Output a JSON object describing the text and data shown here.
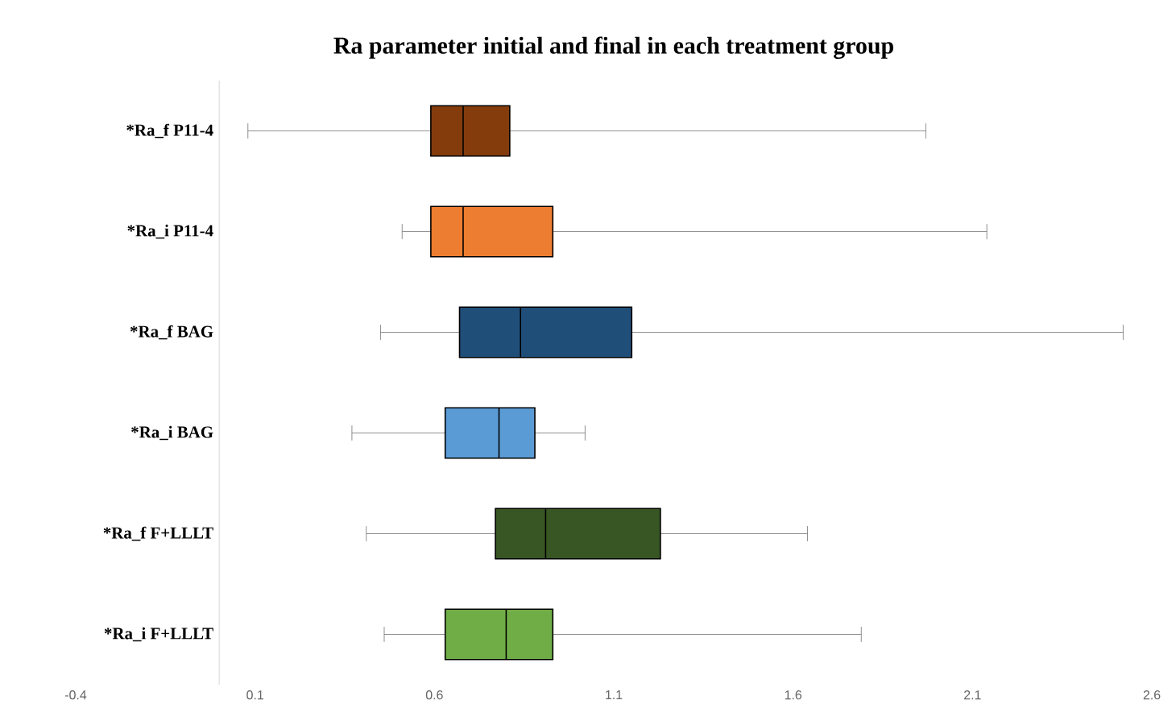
{
  "chart_data": {
    "type": "box",
    "title": "Ra parameter initial and final in each treatment group",
    "orientation": "horizontal",
    "categories": [
      "*Ra_f P11-4",
      "*Ra_i P11-4",
      "*Ra_f BAG",
      "*Ra_i BAG",
      "*Ra_f F+LLLT",
      "*Ra_i F+LLLT"
    ],
    "colors": [
      "#843c0c",
      "#ed7d31",
      "#1f4e79",
      "#5b9bd5",
      "#375623",
      "#70ad47"
    ],
    "boxes": [
      {
        "low": 0.08,
        "q1": 0.59,
        "median": 0.68,
        "q3": 0.81,
        "high": 1.97
      },
      {
        "low": 0.51,
        "q1": 0.59,
        "median": 0.68,
        "q3": 0.93,
        "high": 2.14
      },
      {
        "low": 0.45,
        "q1": 0.67,
        "median": 0.84,
        "q3": 1.15,
        "high": 2.52
      },
      {
        "low": 0.37,
        "q1": 0.63,
        "median": 0.78,
        "q3": 0.88,
        "high": 1.02
      },
      {
        "low": 0.41,
        "q1": 0.77,
        "median": 0.91,
        "q3": 1.23,
        "high": 1.64
      },
      {
        "low": 0.46,
        "q1": 0.63,
        "median": 0.8,
        "q3": 0.93,
        "high": 1.79
      }
    ],
    "xlim": [
      -0.4,
      2.6
    ],
    "xticks": [
      -0.4,
      0.1,
      0.6,
      1.1,
      1.6,
      2.1,
      2.6
    ]
  }
}
